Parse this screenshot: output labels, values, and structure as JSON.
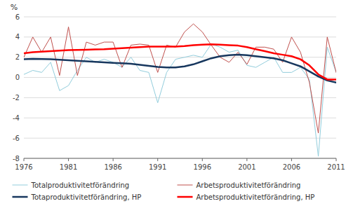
{
  "chart_data": {
    "type": "line",
    "x": [
      1976,
      1977,
      1978,
      1979,
      1980,
      1981,
      1982,
      1983,
      1984,
      1985,
      1986,
      1987,
      1988,
      1989,
      1990,
      1991,
      1992,
      1993,
      1994,
      1995,
      1996,
      1997,
      1998,
      1999,
      2000,
      2001,
      2002,
      2003,
      2004,
      2005,
      2006,
      2007,
      2008,
      2009,
      2010,
      2011
    ],
    "series": [
      {
        "name": "Totalproduktivitetförändring",
        "color": "#92CDDC",
        "values": [
          0.3,
          0.7,
          0.5,
          1.5,
          -1.3,
          -0.8,
          0.7,
          2.0,
          1.5,
          1.8,
          1.5,
          1.0,
          2.0,
          0.7,
          0.5,
          -2.5,
          0.5,
          1.8,
          2.0,
          2.2,
          2.0,
          3.3,
          3.0,
          2.5,
          2.7,
          1.2,
          1.0,
          1.5,
          2.0,
          0.5,
          0.5,
          1.0,
          -0.2,
          -7.8,
          3.0,
          0.5
        ]
      },
      {
        "name": "Totaproduktivitetförändring, HP",
        "color": "#17375E",
        "values": [
          1.8,
          1.85,
          1.82,
          1.8,
          1.75,
          1.7,
          1.65,
          1.6,
          1.55,
          1.5,
          1.45,
          1.4,
          1.35,
          1.25,
          1.15,
          1.05,
          1.0,
          1.0,
          1.1,
          1.3,
          1.6,
          1.9,
          2.1,
          2.2,
          2.25,
          2.2,
          2.1,
          2.0,
          1.9,
          1.7,
          1.4,
          1.1,
          0.6,
          0.1,
          -0.3,
          -0.5
        ]
      },
      {
        "name": "Arbetsproduktivitetförändring",
        "color": "#C0504D",
        "values": [
          2.0,
          4.0,
          2.5,
          4.0,
          0.2,
          5.0,
          0.2,
          3.5,
          3.2,
          3.5,
          3.5,
          1.0,
          3.2,
          3.3,
          3.2,
          0.5,
          3.2,
          3.0,
          4.5,
          5.3,
          4.5,
          3.2,
          2.0,
          1.5,
          2.5,
          1.3,
          3.0,
          3.0,
          2.8,
          1.5,
          4.0,
          2.5,
          -0.5,
          -5.5,
          4.0,
          0.5
        ]
      },
      {
        "name": "Arbetsproduktivitetförändring, HP",
        "color": "#FF0000",
        "values": [
          2.4,
          2.5,
          2.55,
          2.6,
          2.65,
          2.7,
          2.72,
          2.75,
          2.78,
          2.8,
          2.85,
          2.9,
          2.95,
          3.0,
          3.05,
          3.05,
          3.05,
          3.05,
          3.1,
          3.2,
          3.25,
          3.28,
          3.25,
          3.2,
          3.15,
          3.0,
          2.8,
          2.6,
          2.4,
          2.25,
          2.1,
          1.8,
          1.2,
          0.3,
          -0.2,
          -0.2
        ]
      }
    ],
    "xlim": [
      1976,
      2011
    ],
    "xticks": [
      1976,
      1981,
      1986,
      1991,
      1996,
      2001,
      2006,
      2011
    ],
    "ylim": [
      -8,
      6
    ],
    "yticks": [
      -8,
      -6,
      -4,
      -2,
      0,
      2,
      4,
      6
    ],
    "ylabel": "%",
    "grid": true,
    "legend": "bottom"
  }
}
